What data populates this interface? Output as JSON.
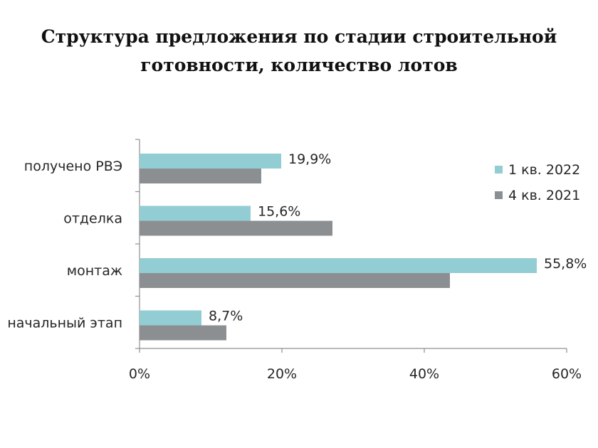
{
  "title_line1": "Структура предложения по стадии строительной",
  "title_line2": "готовности, количество лотов",
  "chart_data": {
    "type": "bar",
    "orientation": "horizontal",
    "categories": [
      "получено РВЭ",
      "отделка",
      "монтаж",
      "начальный этап"
    ],
    "series": [
      {
        "name": "1 кв. 2022",
        "color": "#93cdd4",
        "values": [
          19.9,
          15.6,
          55.8,
          8.7
        ],
        "labels": [
          "19,9%",
          "15,6%",
          "55,8%",
          "8,7%"
        ]
      },
      {
        "name": "4 кв. 2021",
        "color": "#8c8f92",
        "values": [
          17.1,
          27.1,
          43.6,
          12.2
        ]
      }
    ],
    "xlim": [
      0,
      60
    ],
    "xticks": [
      0,
      20,
      40,
      60
    ],
    "xtick_labels": [
      "0%",
      "20%",
      "40%",
      "60%"
    ],
    "grid": false,
    "legend_position": "right"
  }
}
